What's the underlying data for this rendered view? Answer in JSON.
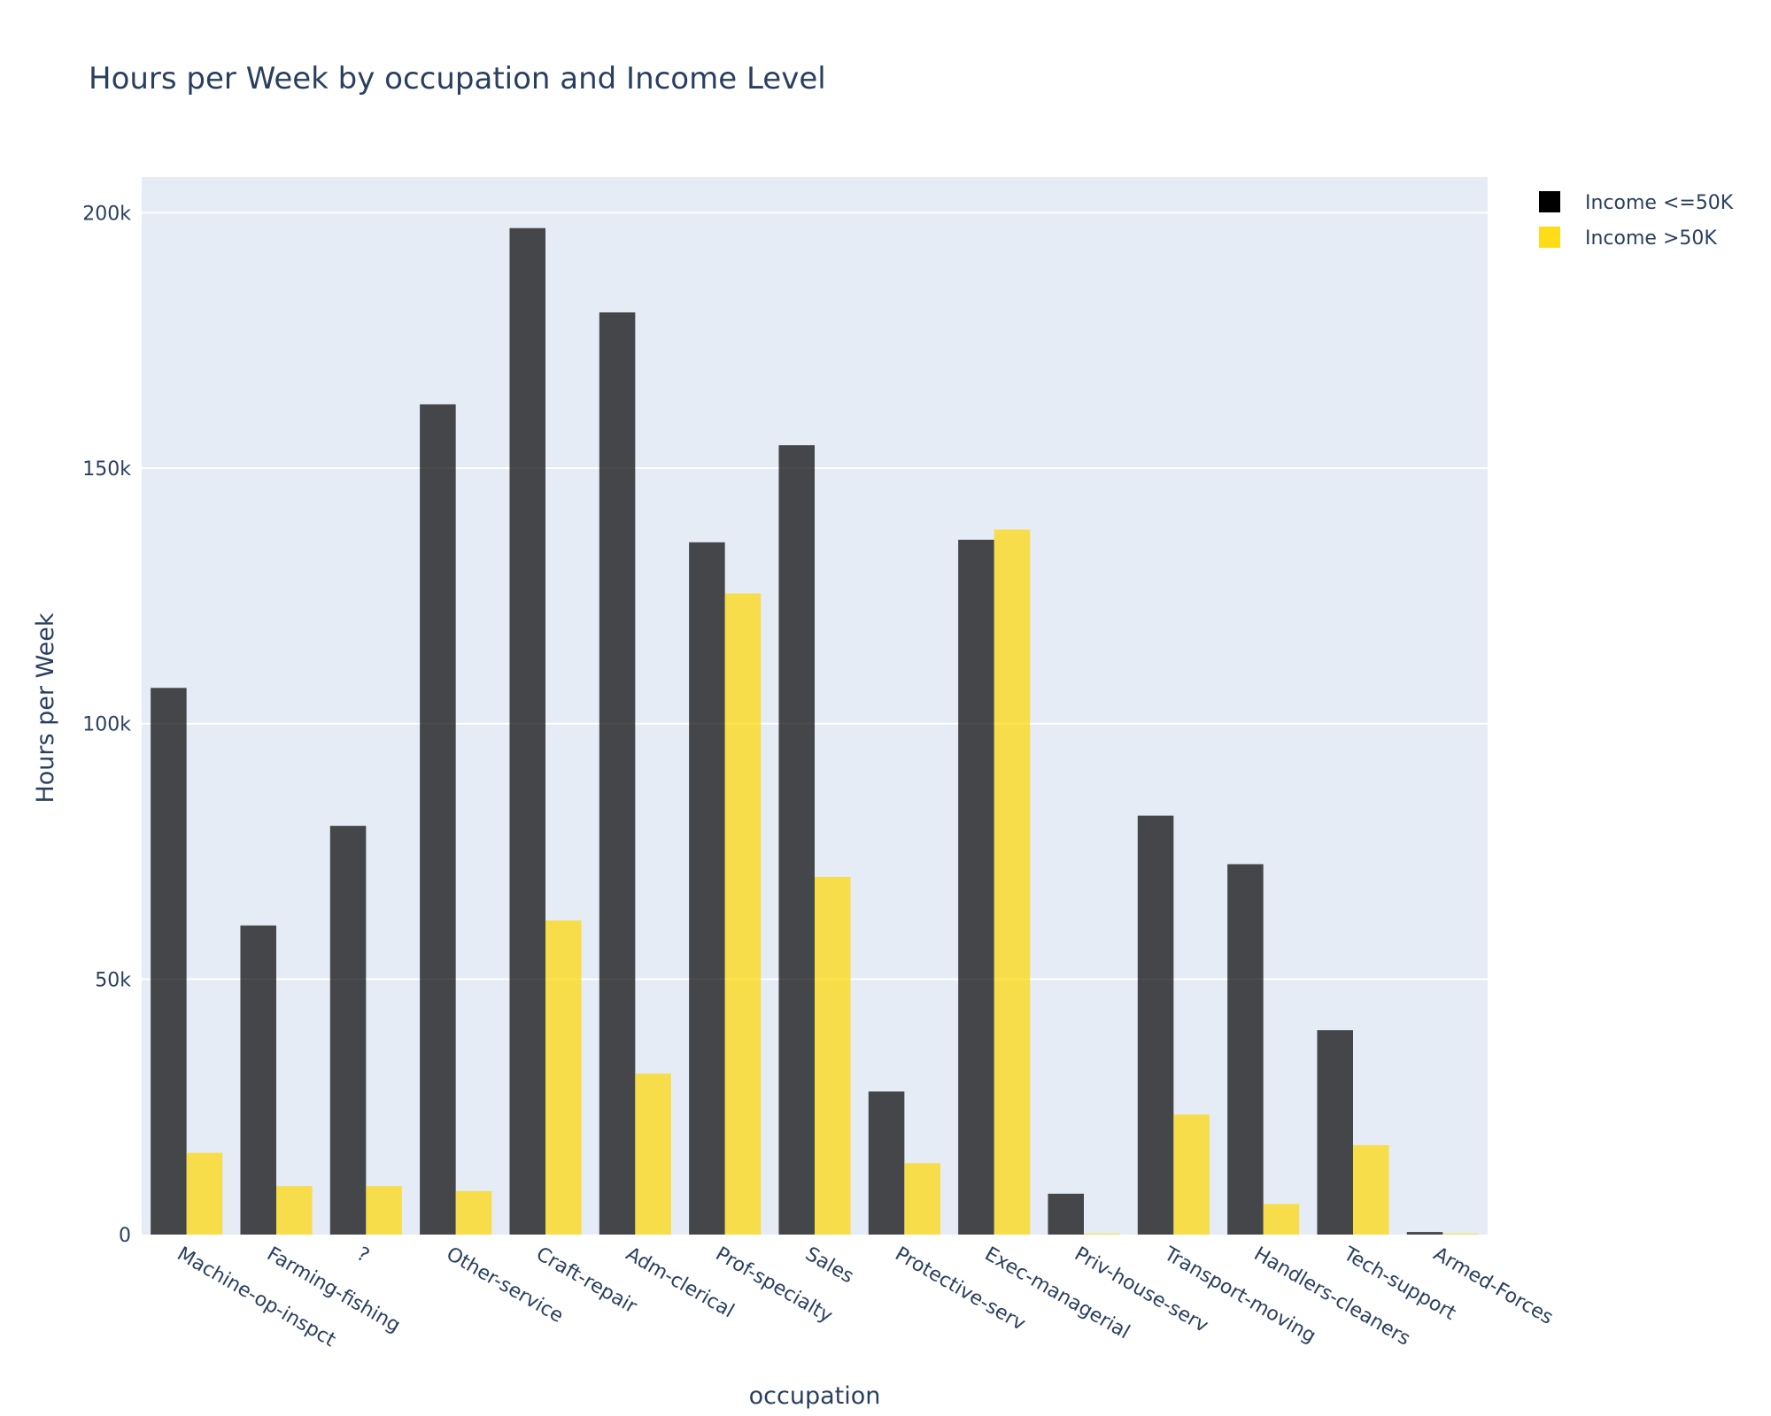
{
  "chart_data": {
    "type": "bar",
    "title": "Hours per Week by occupation and Income Level",
    "xlabel": "occupation",
    "ylabel": "Hours per Week",
    "categories": [
      "Machine-op-inspct",
      "Farming-fishing",
      "?",
      "Other-service",
      "Craft-repair",
      "Adm-clerical",
      "Prof-specialty",
      "Sales",
      "Protective-serv",
      "Exec-managerial",
      "Priv-house-serv",
      "Transport-moving",
      "Handlers-cleaners",
      "Tech-support",
      "Armed-Forces"
    ],
    "series": [
      {
        "name": "Income <=50K",
        "color": "#000000",
        "values": [
          107000,
          60500,
          80000,
          162500,
          197000,
          180500,
          135500,
          154500,
          28000,
          136000,
          8000,
          82000,
          72500,
          40000,
          500
        ]
      },
      {
        "name": "Income >50K",
        "color": "#FFD700",
        "values": [
          16000,
          9500,
          9500,
          8500,
          61500,
          31500,
          125500,
          70000,
          14000,
          138000,
          200,
          23500,
          6000,
          17500,
          200
        ]
      }
    ],
    "ylim": [
      0,
      207000
    ],
    "yticks": [
      0,
      50000,
      100000,
      150000,
      200000
    ],
    "ytick_labels": [
      "0",
      "50k",
      "100k",
      "150k",
      "200k"
    ],
    "grid": true,
    "legend_position": "top-right",
    "barmode": "group",
    "bar_opacity": 0.7,
    "plot_background": "#E5ECF6"
  }
}
